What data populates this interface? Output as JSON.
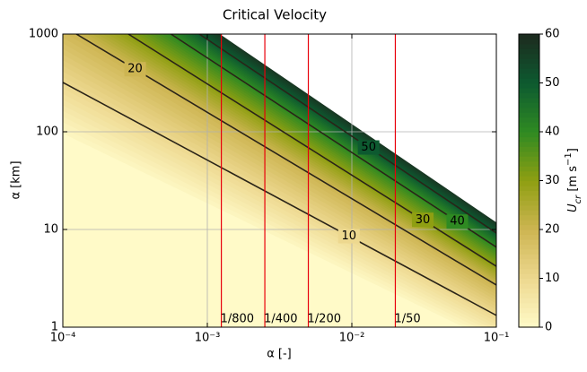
{
  "chart_data": {
    "type": "contourf",
    "title": "Critical Velocity",
    "x_label": "α [-]",
    "y_label": "α [km]",
    "log_x": true,
    "log_y": true,
    "grid": true,
    "xlim": [
      0.0001,
      0.1
    ],
    "ylim": [
      1,
      1000
    ],
    "xticks": [
      {
        "value": 0.0001,
        "label": "10⁻⁴"
      },
      {
        "value": 0.001,
        "label": "10⁻³"
      },
      {
        "value": 0.01,
        "label": "10⁻²"
      },
      {
        "value": 0.1,
        "label": "10⁻¹"
      }
    ],
    "yticks": [
      1,
      10,
      100,
      1000
    ],
    "contours": [
      {
        "level": 10,
        "x": [
          0.0001,
          0.1
        ],
        "y": [
          320,
          1.32
        ]
      },
      {
        "level": 20,
        "x": [
          0.000124,
          0.1
        ],
        "y": [
          1000,
          2.7
        ]
      },
      {
        "level": 30,
        "x": [
          0.000284,
          0.1
        ],
        "y": [
          1000,
          4.2
        ]
      },
      {
        "level": 40,
        "x": [
          0.00056,
          0.1
        ],
        "y": [
          1000,
          6.6
        ]
      },
      {
        "level": 50,
        "x": [
          0.00088,
          0.1
        ],
        "y": [
          1000,
          9.2
        ]
      }
    ],
    "mask_boundary": {
      "x": [
        0.00122,
        0.1
      ],
      "y": [
        1000,
        11.8
      ]
    },
    "contour_color": "#2a2418",
    "vline_color": "#e8000b",
    "vlines": [
      {
        "x": 0.00125,
        "label": "1/800"
      },
      {
        "x": 0.0025,
        "label": "1/400"
      },
      {
        "x": 0.005,
        "label": "1/200"
      },
      {
        "x": 0.02,
        "label": "1/50"
      }
    ],
    "colorbar": {
      "label": [
        "U",
        "cr",
        " [m s",
        "−1",
        "]"
      ],
      "clim": [
        0,
        60
      ],
      "ticks": [
        0,
        10,
        20,
        30,
        40,
        50,
        60
      ],
      "colors": [
        "#fffac8",
        "#edd88f",
        "#cdb552",
        "#8f9f12",
        "#2f8a22",
        "#0d5a30",
        "#1d2a1e"
      ]
    }
  }
}
